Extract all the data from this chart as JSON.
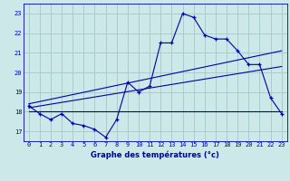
{
  "title": "Graphe des températures (°c)",
  "background_color": "#cce8e8",
  "grid_color": "#aacccc",
  "line_color": "#0000aa",
  "xlim": [
    -0.5,
    23.5
  ],
  "ylim": [
    16.5,
    23.5
  ],
  "xticks": [
    0,
    1,
    2,
    3,
    4,
    5,
    6,
    7,
    8,
    9,
    10,
    11,
    12,
    13,
    14,
    15,
    16,
    17,
    18,
    19,
    20,
    21,
    22,
    23
  ],
  "yticks": [
    17,
    18,
    19,
    20,
    21,
    22,
    23
  ],
  "temp_curve": [
    [
      0,
      18.3
    ],
    [
      1,
      17.9
    ],
    [
      2,
      17.6
    ],
    [
      3,
      17.9
    ],
    [
      4,
      17.4
    ],
    [
      5,
      17.3
    ],
    [
      6,
      17.1
    ],
    [
      7,
      16.7
    ],
    [
      8,
      17.6
    ],
    [
      9,
      19.5
    ],
    [
      10,
      19.0
    ],
    [
      11,
      19.3
    ],
    [
      12,
      21.5
    ],
    [
      13,
      21.5
    ],
    [
      14,
      23.0
    ],
    [
      15,
      22.8
    ],
    [
      16,
      21.9
    ],
    [
      17,
      21.7
    ],
    [
      18,
      21.7
    ],
    [
      19,
      21.1
    ],
    [
      20,
      20.4
    ],
    [
      21,
      20.4
    ],
    [
      22,
      18.7
    ],
    [
      23,
      17.9
    ]
  ],
  "line1": [
    [
      0,
      18.0
    ],
    [
      23,
      18.0
    ]
  ],
  "line2": [
    [
      0,
      18.2
    ],
    [
      23,
      20.3
    ]
  ],
  "line3": [
    [
      0,
      18.4
    ],
    [
      23,
      21.1
    ]
  ]
}
